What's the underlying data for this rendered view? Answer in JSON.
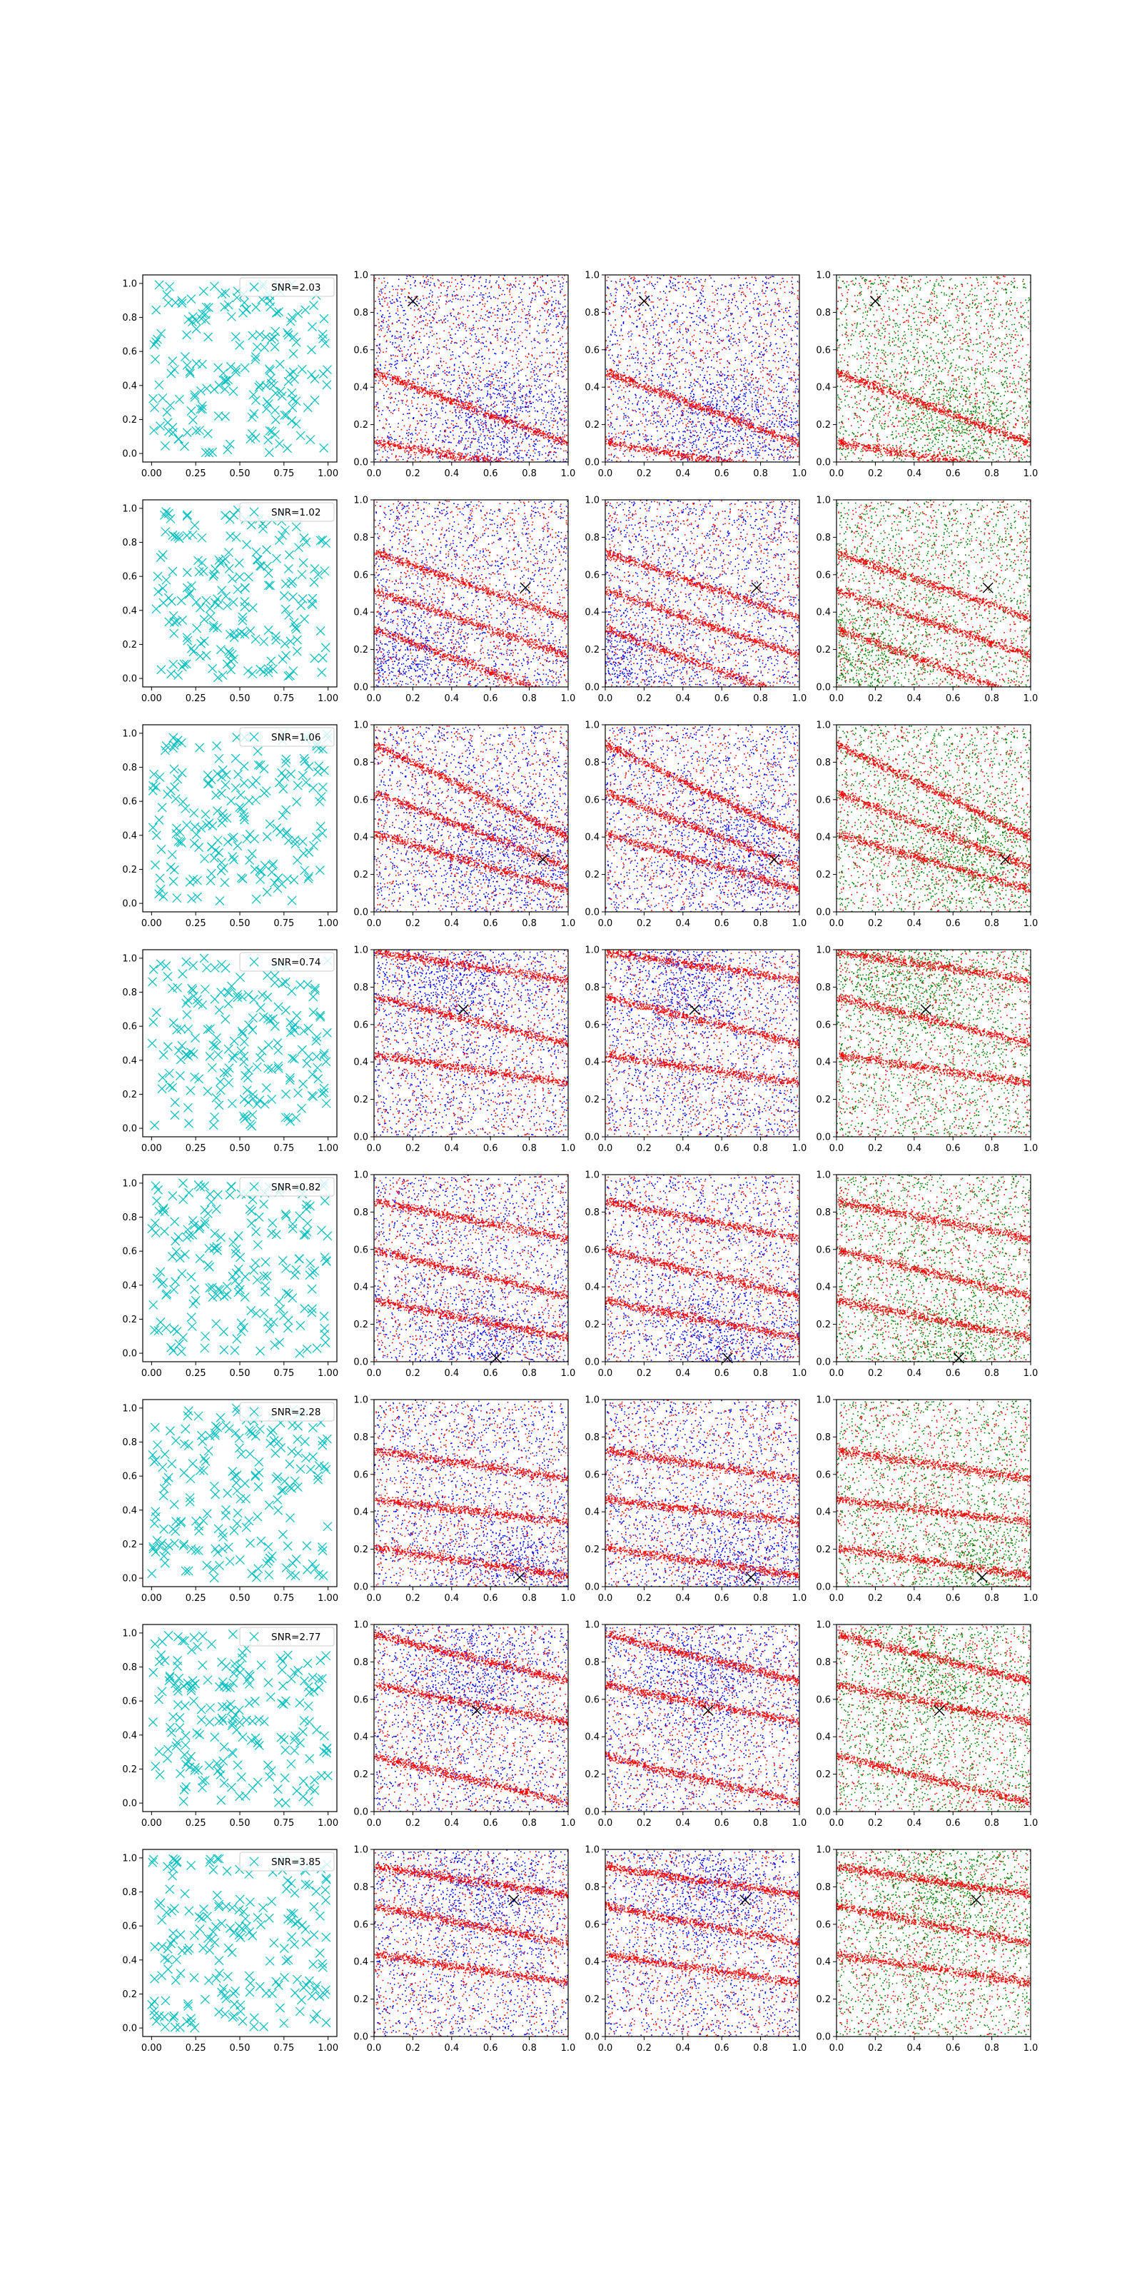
{
  "figure": {
    "rows": 8,
    "cols": 4,
    "colors": {
      "cyan": "#00bfbf",
      "red": "#ff0000",
      "blue": "#0000ff",
      "green": "#008000",
      "marker": "#000000"
    },
    "column_descriptions": [
      "cyan x-marker scatter with SNR legend",
      "red + blue dots",
      "red + blue dots",
      "red + green dots"
    ]
  },
  "chart_data": [
    {
      "row": 0,
      "type": "scatter",
      "legend": "SNR=2.03",
      "marker": [
        0.2,
        0.86
      ],
      "stripes": [
        [
          0.33,
          0.38,
          0.35
        ],
        [
          0.04,
          0.17,
          0.3
        ]
      ],
      "clump": [
        0.65,
        0.22
      ],
      "xlim": [
        0,
        1
      ],
      "ylim": [
        0,
        1
      ],
      "xticks_a": [
        "0.00",
        "0.25",
        "0.50",
        "0.75",
        "1.00"
      ],
      "xticks_b": [
        "0.0",
        "0.2",
        "0.4",
        "0.6",
        "0.8",
        "1.0"
      ],
      "yticks": [
        "0.0",
        "0.2",
        "0.4",
        "0.6",
        "0.8",
        "1.0"
      ],
      "grid": false,
      "legend_position": "upper right"
    },
    {
      "row": 1,
      "type": "scatter",
      "legend": "SNR=1.02",
      "marker": [
        0.78,
        0.53
      ],
      "stripes": [
        [
          0.38,
          0.35,
          0.3
        ],
        [
          0.58,
          0.35,
          0.3
        ],
        [
          0.16,
          0.38,
          0.3
        ]
      ],
      "clump": [
        0.1,
        0.15
      ],
      "xlim": [
        0,
        1
      ],
      "ylim": [
        0,
        1
      ],
      "xticks_a": [
        "0.00",
        "0.25",
        "0.50",
        "0.75",
        "1.00"
      ],
      "xticks_b": [
        "0.0",
        "0.2",
        "0.4",
        "0.6",
        "0.8",
        "1.0"
      ],
      "yticks": [
        "0.0",
        "0.2",
        "0.4",
        "0.6",
        "0.8",
        "1.0"
      ],
      "grid": false,
      "legend_position": "upper right"
    },
    {
      "row": 2,
      "type": "scatter",
      "legend": "SNR=1.06",
      "marker": [
        0.87,
        0.28
      ],
      "stripes": [
        [
          0.7,
          0.5,
          0.35
        ],
        [
          0.48,
          0.4,
          0.3
        ],
        [
          0.3,
          0.3,
          0.3
        ]
      ],
      "clump": [
        0.7,
        0.33
      ],
      "xlim": [
        0,
        1
      ],
      "ylim": [
        0,
        1
      ],
      "xticks_a": [
        "0.00",
        "0.25",
        "0.50",
        "0.75",
        "1.00"
      ],
      "xticks_b": [
        "0.0",
        "0.2",
        "0.4",
        "0.6",
        "0.8",
        "1.0"
      ],
      "yticks": [
        "0.0",
        "0.2",
        "0.4",
        "0.6",
        "0.8",
        "1.0"
      ],
      "grid": false,
      "legend_position": "upper right"
    },
    {
      "row": 3,
      "type": "scatter",
      "legend": "SNR=0.74",
      "marker": [
        0.46,
        0.68
      ],
      "stripes": [
        [
          0.93,
          0.15,
          0.3
        ],
        [
          0.38,
          0.15,
          0.3
        ],
        [
          0.65,
          0.25,
          0.3
        ]
      ],
      "clump": [
        0.4,
        0.85
      ],
      "xlim": [
        0,
        1
      ],
      "ylim": [
        0,
        1
      ],
      "xticks_a": [
        "0.00",
        "0.25",
        "0.50",
        "0.75",
        "1.00"
      ],
      "xticks_b": [
        "0.0",
        "0.2",
        "0.4",
        "0.6",
        "0.8",
        "1.0"
      ],
      "yticks": [
        "0.0",
        "0.2",
        "0.4",
        "0.6",
        "0.8",
        "1.0"
      ],
      "grid": false,
      "legend_position": "upper right"
    },
    {
      "row": 4,
      "type": "scatter",
      "legend": "SNR=0.82",
      "marker": [
        0.63,
        0.02
      ],
      "stripes": [
        [
          0.78,
          0.2,
          0.3
        ],
        [
          0.5,
          0.25,
          0.3
        ],
        [
          0.25,
          0.2,
          0.3
        ]
      ],
      "clump": [
        0.6,
        0.1
      ],
      "xlim": [
        0,
        1
      ],
      "ylim": [
        0,
        1
      ],
      "xticks_a": [
        "0.00",
        "0.25",
        "0.50",
        "0.75",
        "1.00"
      ],
      "xticks_b": [
        "0.0",
        "0.2",
        "0.4",
        "0.6",
        "0.8",
        "1.0"
      ],
      "yticks": [
        "0.0",
        "0.2",
        "0.4",
        "0.6",
        "0.8",
        "1.0"
      ],
      "grid": false,
      "legend_position": "upper right"
    },
    {
      "row": 5,
      "type": "scatter",
      "legend": "SNR=2.28",
      "marker": [
        0.75,
        0.05
      ],
      "stripes": [
        [
          0.67,
          0.15,
          0.3
        ],
        [
          0.15,
          0.15,
          0.3
        ],
        [
          0.42,
          0.12,
          0.3
        ]
      ],
      "clump": [
        0.75,
        0.1
      ],
      "xlim": [
        0,
        1
      ],
      "ylim": [
        0,
        1
      ],
      "xticks_a": [
        "0.00",
        "0.25",
        "0.50",
        "0.75",
        "1.00"
      ],
      "xticks_b": [
        "0.0",
        "0.2",
        "0.4",
        "0.6",
        "0.8",
        "1.0"
      ],
      "yticks": [
        "0.0",
        "0.2",
        "0.4",
        "0.6",
        "0.8",
        "1.0"
      ],
      "grid": false,
      "legend_position": "upper right"
    },
    {
      "row": 6,
      "type": "scatter",
      "legend": "SNR=2.77",
      "marker": [
        0.53,
        0.54
      ],
      "stripes": [
        [
          0.85,
          0.25,
          0.35
        ],
        [
          0.6,
          0.2,
          0.3
        ],
        [
          0.2,
          0.25,
          0.3
        ]
      ],
      "clump": [
        0.5,
        0.72
      ],
      "xlim": [
        0,
        1
      ],
      "ylim": [
        0,
        1
      ],
      "xticks_a": [
        "0.00",
        "0.25",
        "0.50",
        "0.75",
        "1.00"
      ],
      "xticks_b": [
        "0.0",
        "0.2",
        "0.4",
        "0.6",
        "0.8",
        "1.0"
      ],
      "yticks": [
        "0.0",
        "0.2",
        "0.4",
        "0.6",
        "0.8",
        "1.0"
      ],
      "grid": false,
      "legend_position": "upper right"
    },
    {
      "row": 7,
      "type": "scatter",
      "legend": "SNR=3.85",
      "marker": [
        0.72,
        0.73
      ],
      "stripes": [
        [
          0.85,
          0.15,
          0.35
        ],
        [
          0.62,
          0.2,
          0.3
        ],
        [
          0.38,
          0.15,
          0.3
        ]
      ],
      "clump": [
        0.55,
        0.78
      ],
      "xlim": [
        0,
        1
      ],
      "ylim": [
        0,
        1
      ],
      "xticks_a": [
        "0.00",
        "0.25",
        "0.50",
        "0.75",
        "1.00"
      ],
      "xticks_b": [
        "0.0",
        "0.2",
        "0.4",
        "0.6",
        "0.8",
        "1.0"
      ],
      "yticks": [
        "0.0",
        "0.2",
        "0.4",
        "0.6",
        "0.8",
        "1.0"
      ],
      "grid": false,
      "legend_position": "upper right"
    }
  ]
}
